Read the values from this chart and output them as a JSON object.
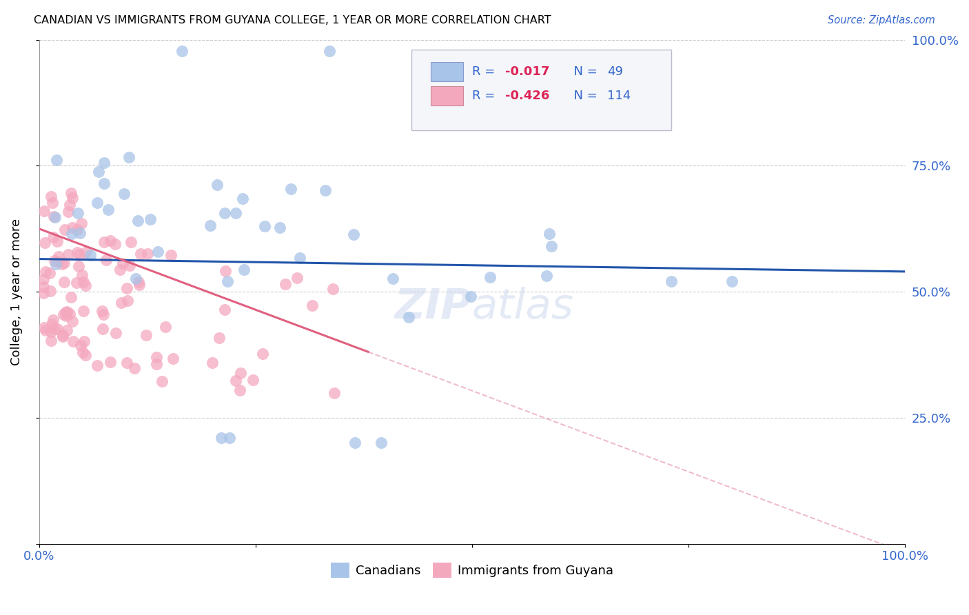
{
  "title": "CANADIAN VS IMMIGRANTS FROM GUYANA COLLEGE, 1 YEAR OR MORE CORRELATION CHART",
  "source": "Source: ZipAtlas.com",
  "ylabel": "College, 1 year or more",
  "xlim": [
    0,
    1.0
  ],
  "ylim": [
    0,
    1.0
  ],
  "canadians_R": -0.017,
  "canadians_N": 49,
  "guyana_R": -0.426,
  "guyana_N": 114,
  "canadian_color": "#a8c4e8",
  "guyana_color": "#f4a8be",
  "canadian_line_color": "#2255aa",
  "guyana_line_color": "#e06080",
  "guyana_line_solid_end": 0.38,
  "watermark": "ZIPatlas",
  "legend_R1": "R = -0.017",
  "legend_N1": "N =  49",
  "legend_R2": "R = -0.426",
  "legend_N2": "N = 114",
  "legend_text_color": "#3366cc",
  "legend_neg_color": "#cc2255"
}
